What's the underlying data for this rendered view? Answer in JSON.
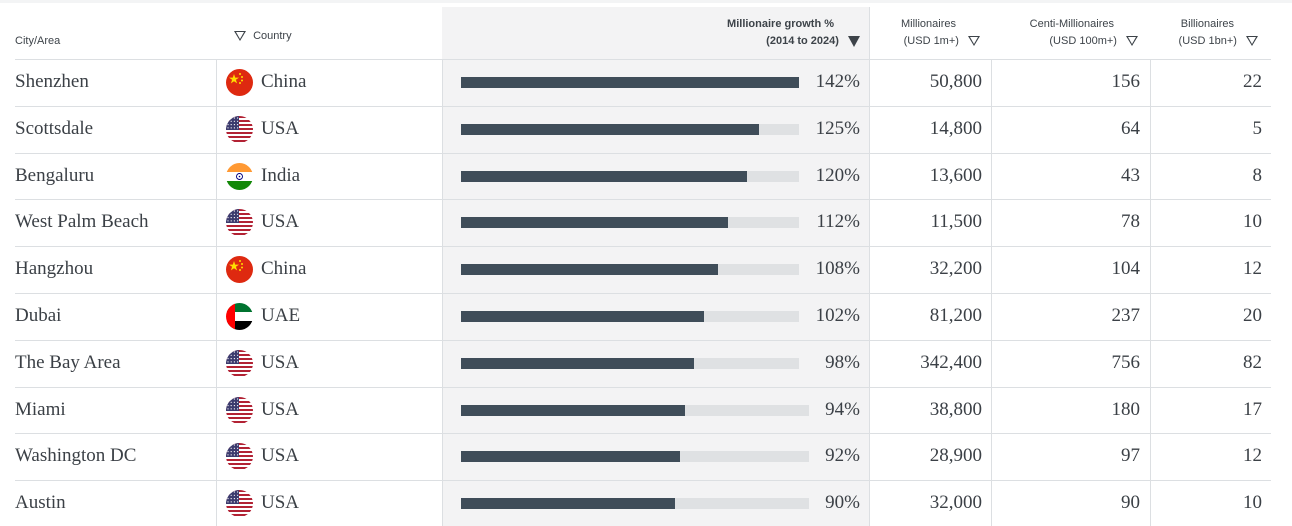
{
  "header": {
    "city": "City/Area",
    "country": "Country",
    "growth_line1": "Millionaire growth %",
    "growth_line2": "(2014 to 2024)",
    "millionaires_line1": "Millionaires",
    "millionaires_line2": "(USD 1m+)",
    "centi_line1": "Centi-Millionaires",
    "centi_line2": "(USD 100m+)",
    "billionaires_line1": "Billionaires",
    "billionaires_line2": "(USD 1bn+)"
  },
  "rows": [
    {
      "city": "Shenzhen",
      "country": "China",
      "flag": "china-flag-icon",
      "growth": "142%",
      "growth_value": 142,
      "millionaires": "50,800",
      "centi": "156",
      "billionaires": "22"
    },
    {
      "city": "Scottsdale",
      "country": "USA",
      "flag": "usa-flag-icon",
      "growth": "125%",
      "growth_value": 125,
      "millionaires": "14,800",
      "centi": "64",
      "billionaires": "5"
    },
    {
      "city": "Bengaluru",
      "country": "India",
      "flag": "india-flag-icon",
      "growth": "120%",
      "growth_value": 120,
      "millionaires": "13,600",
      "centi": "43",
      "billionaires": "8"
    },
    {
      "city": "West Palm Beach",
      "country": "USA",
      "flag": "usa-flag-icon",
      "growth": "112%",
      "growth_value": 112,
      "millionaires": "11,500",
      "centi": "78",
      "billionaires": "10"
    },
    {
      "city": "Hangzhou",
      "country": "China",
      "flag": "china-flag-icon",
      "growth": "108%",
      "growth_value": 108,
      "millionaires": "32,200",
      "centi": "104",
      "billionaires": "12"
    },
    {
      "city": "Dubai",
      "country": "UAE",
      "flag": "uae-flag-icon",
      "growth": "102%",
      "growth_value": 102,
      "millionaires": "81,200",
      "centi": "237",
      "billionaires": "20"
    },
    {
      "city": "The Bay Area",
      "country": "USA",
      "flag": "usa-flag-icon",
      "growth": "98%",
      "growth_value": 98,
      "millionaires": "342,400",
      "centi": "756",
      "billionaires": "82"
    },
    {
      "city": "Miami",
      "country": "USA",
      "flag": "usa-flag-icon",
      "growth": "94%",
      "growth_value": 94,
      "millionaires": "38,800",
      "centi": "180",
      "billionaires": "17"
    },
    {
      "city": "Washington DC",
      "country": "USA",
      "flag": "usa-flag-icon",
      "growth": "92%",
      "growth_value": 92,
      "millionaires": "28,900",
      "centi": "97",
      "billionaires": "12"
    },
    {
      "city": "Austin",
      "country": "USA",
      "flag": "usa-flag-icon",
      "growth": "90%",
      "growth_value": 90,
      "millionaires": "32,000",
      "centi": "90",
      "billionaires": "10"
    }
  ],
  "colors": {
    "bar_fill": "#3f4d59",
    "bar_track": "#dfe1e3",
    "highlight_column": "#f3f3f4",
    "text": "#3b4046"
  }
}
